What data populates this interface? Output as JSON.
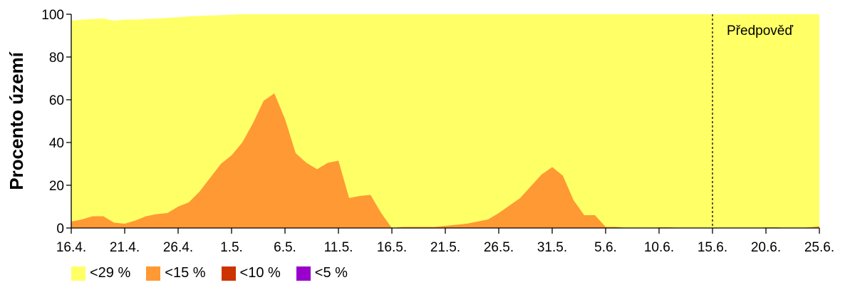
{
  "chart_data": {
    "type": "area",
    "title": "",
    "xlabel": "",
    "ylabel": "Procento území",
    "ylim": [
      0,
      100
    ],
    "y_ticks": [
      0,
      20,
      40,
      60,
      80,
      100
    ],
    "x_range": [
      "16.4.",
      "25.6."
    ],
    "x_tick_labels": [
      "16.4.",
      "21.4.",
      "26.4.",
      "1.5.",
      "6.5.",
      "11.5.",
      "16.5.",
      "21.5.",
      "26.5.",
      "31.5.",
      "5.6.",
      "10.6.",
      "15.6.",
      "20.6.",
      "25.6."
    ],
    "forecast": {
      "label": "Předpověď",
      "start": "15.6."
    },
    "x": [
      "16.4.",
      "17.4.",
      "18.4.",
      "19.4.",
      "20.4.",
      "21.4.",
      "22.4.",
      "23.4.",
      "24.4.",
      "25.4.",
      "26.4.",
      "27.4.",
      "28.4.",
      "29.4.",
      "30.4.",
      "1.5.",
      "2.5.",
      "3.5.",
      "4.5.",
      "5.5.",
      "6.5.",
      "7.5.",
      "8.5.",
      "9.5.",
      "10.5.",
      "11.5.",
      "12.5.",
      "13.5.",
      "14.5.",
      "15.5.",
      "16.5.",
      "17.5.",
      "18.5.",
      "19.5.",
      "20.5.",
      "21.5.",
      "22.5.",
      "23.5.",
      "24.5.",
      "25.5.",
      "26.5.",
      "27.5.",
      "28.5.",
      "29.5.",
      "30.5.",
      "31.5.",
      "1.6.",
      "2.6.",
      "3.6.",
      "4.6.",
      "5.6.",
      "6.6.",
      "7.6.",
      "8.6.",
      "9.6.",
      "10.6.",
      "11.6.",
      "12.6.",
      "13.6.",
      "14.6.",
      "15.6.",
      "16.6.",
      "17.6.",
      "18.6.",
      "19.6.",
      "20.6.",
      "21.6.",
      "22.6.",
      "23.6.",
      "24.6.",
      "25.6."
    ],
    "series": [
      {
        "name": "<29 %",
        "color": "#FFFF66",
        "values": [
          97,
          97.5,
          97.8,
          98,
          97,
          97.5,
          97.5,
          97.8,
          98,
          98.3,
          98.6,
          99,
          99.2,
          99.4,
          99.6,
          99.8,
          100,
          100,
          100,
          100,
          100,
          100,
          100,
          100,
          100,
          100,
          100,
          100,
          100,
          100,
          100,
          100,
          100,
          100,
          100,
          100,
          100,
          100,
          100,
          100,
          100,
          100,
          100,
          100,
          100,
          100,
          100,
          100,
          100,
          100,
          100,
          100,
          100,
          100,
          100,
          100,
          100,
          100,
          100,
          100,
          100,
          100,
          100,
          100,
          100,
          100,
          100,
          100,
          100,
          100,
          100
        ]
      },
      {
        "name": "<15 %",
        "color": "#FF9933",
        "values": [
          3,
          4,
          5.5,
          5.5,
          2.5,
          2,
          3.5,
          5.5,
          6.5,
          7,
          10,
          12,
          17,
          23.5,
          30,
          34,
          40,
          49,
          59.5,
          63,
          51,
          35,
          30.5,
          27.5,
          30.5,
          31.5,
          14,
          15,
          15.5,
          7,
          0,
          0.5,
          0.5,
          0.5,
          0.5,
          1,
          1.5,
          2,
          3,
          4,
          7,
          10.5,
          14,
          19.5,
          25,
          28.5,
          24.5,
          13,
          6,
          6,
          0.5,
          0.5,
          0,
          0,
          0,
          0.3,
          0.3,
          0,
          0,
          0,
          0,
          0,
          0,
          0,
          0,
          0.3,
          0.3,
          0,
          0,
          0.3,
          0.8
        ]
      },
      {
        "name": "<10 %",
        "color": "#CC3300",
        "values": [
          0,
          0,
          0,
          0,
          0,
          0,
          0,
          0,
          0,
          0,
          0,
          0,
          0,
          0,
          0,
          0,
          0,
          0,
          0,
          0,
          0,
          0,
          0,
          0,
          0,
          0,
          0,
          0,
          0,
          0,
          0,
          0,
          0,
          0,
          0,
          0,
          0,
          0,
          0,
          0,
          0,
          0,
          0,
          0,
          0,
          0,
          0,
          0,
          0,
          0,
          0,
          0,
          0,
          0,
          0,
          0,
          0,
          0,
          0,
          0,
          0,
          0,
          0,
          0,
          0,
          0,
          0,
          0,
          0,
          0,
          0
        ]
      },
      {
        "name": "<5 %",
        "color": "#9900CC",
        "values": [
          0,
          0,
          0,
          0,
          0,
          0,
          0,
          0,
          0,
          0,
          0,
          0,
          0,
          0,
          0,
          0,
          0,
          0,
          0,
          0,
          0,
          0,
          0,
          0,
          0,
          0,
          0,
          0,
          0,
          0,
          0,
          0,
          0,
          0,
          0,
          0,
          0,
          0,
          0,
          0,
          0,
          0,
          0,
          0,
          0,
          0,
          0,
          0,
          0,
          0,
          0,
          0,
          0,
          0,
          0,
          0,
          0,
          0,
          0,
          0,
          0,
          0,
          0,
          0,
          0,
          0,
          0,
          0,
          0,
          0,
          0
        ]
      }
    ],
    "legend_position": "bottom-left",
    "grid": false
  }
}
